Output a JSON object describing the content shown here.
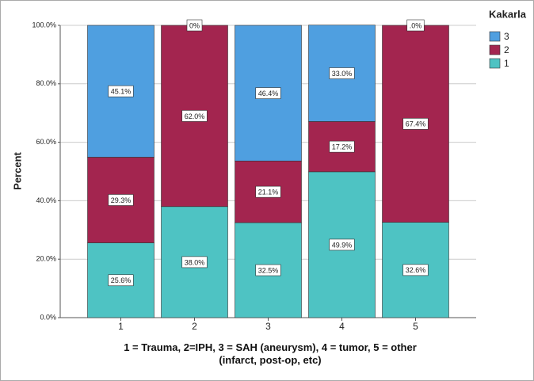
{
  "chart_data": {
    "type": "stacked_bar",
    "x_label": "1 = Trauma, 2=IPH, 3 = SAH (aneurysm), 4 = tumor, 5 = other (infarct, post-op, etc)",
    "y_label": "Percent",
    "legend_title": "Kakarla",
    "legend_position": "right",
    "categories": [
      "1",
      "2",
      "3",
      "4",
      "5"
    ],
    "series": [
      {
        "name": "1",
        "color": "#4ec3c3",
        "values": [
          25.6,
          38.0,
          32.5,
          49.9,
          32.6
        ],
        "value_labels": [
          "25.6%",
          "38.0%",
          "32.5%",
          "49.9%",
          "32.6%"
        ]
      },
      {
        "name": "2",
        "color": "#a3254f",
        "values": [
          29.3,
          62.0,
          21.1,
          17.2,
          67.4
        ],
        "value_labels": [
          "29.3%",
          "62.0%",
          "21.1%",
          "17.2%",
          "67.4%"
        ]
      },
      {
        "name": "3",
        "color": "#4f9fe0",
        "values": [
          45.1,
          0,
          46.4,
          33.0,
          0
        ],
        "value_labels": [
          "45.1%",
          "0%",
          "46.4%",
          "33.0%",
          ".0%"
        ]
      }
    ],
    "ylim": [
      0,
      100
    ],
    "yticks": [
      {
        "value": 0,
        "label": "0.0%"
      },
      {
        "value": 20,
        "label": "20.0%"
      },
      {
        "value": 40,
        "label": "40.0%"
      },
      {
        "value": 60,
        "label": "60.0%"
      },
      {
        "value": 80,
        "label": "80.0%"
      },
      {
        "value": 100,
        "label": "100.0%"
      }
    ],
    "grid": true
  }
}
